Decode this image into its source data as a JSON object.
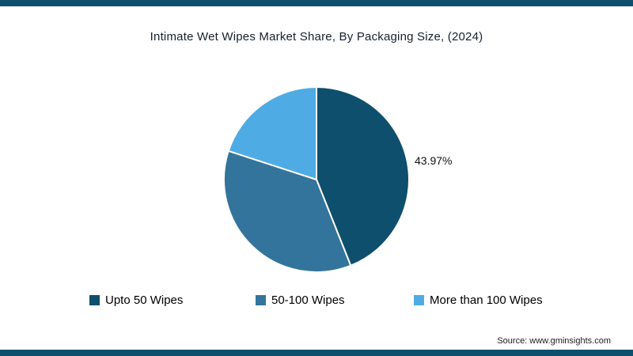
{
  "title": "Intimate Wet Wipes Market Share, By Packaging Size, (2024)",
  "source": "Source: www.gminsights.com",
  "colors": {
    "accent": "#0e4f6d",
    "slice_border": "#ffffff",
    "annotation_text": "#111111"
  },
  "chart_data": {
    "type": "pie",
    "title": "Intimate Wet Wipes Market Share, By Packaging Size, (2024)",
    "labels": [
      "Upto 50 Wipes",
      "50-100 Wipes",
      "More than 100 Wipes"
    ],
    "values": [
      43.97,
      36.03,
      20.0
    ],
    "colors": [
      "#0e4f6d",
      "#33749c",
      "#4fabe4"
    ],
    "annotation": {
      "text": "43.97%",
      "slice": "Upto 50 Wipes"
    },
    "start_angle": "top",
    "direction": "clockwise",
    "legend_position": "bottom"
  }
}
